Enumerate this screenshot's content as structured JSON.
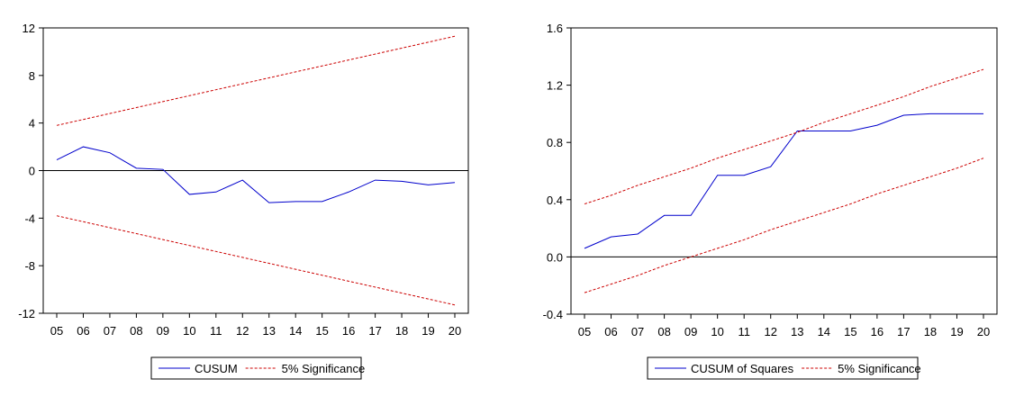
{
  "chart_data": [
    {
      "type": "line",
      "categories": [
        "05",
        "06",
        "07",
        "08",
        "09",
        "10",
        "11",
        "12",
        "13",
        "14",
        "15",
        "16",
        "17",
        "18",
        "19",
        "20"
      ],
      "ylim": [
        -12,
        12
      ],
      "yticks": [
        12,
        8,
        4,
        0,
        -4,
        -8,
        -12
      ],
      "ytick_labels": [
        "12",
        "8",
        "4",
        "0",
        "-4",
        "-8",
        "-12"
      ],
      "series": [
        {
          "name": "CUSUM",
          "color": "#0000cc",
          "style": "solid",
          "values": [
            0.9,
            2.0,
            1.5,
            0.2,
            0.1,
            -2.0,
            -1.8,
            -0.8,
            -2.7,
            -2.6,
            -2.6,
            -1.8,
            -0.8,
            -0.9,
            -1.2,
            -1.0
          ]
        },
        {
          "name": "5% Significance",
          "color": "#cc0000",
          "style": "dashed",
          "values": [
            3.8,
            4.3,
            4.8,
            5.3,
            5.8,
            6.3,
            6.8,
            7.3,
            7.8,
            8.3,
            8.8,
            9.3,
            9.8,
            10.3,
            10.8,
            11.3
          ]
        },
        {
          "name": "5% Significance",
          "color": "#cc0000",
          "style": "dashed",
          "values": [
            -3.8,
            -4.3,
            -4.8,
            -5.3,
            -5.8,
            -6.3,
            -6.8,
            -7.3,
            -7.8,
            -8.3,
            -8.8,
            -9.3,
            -9.8,
            -10.3,
            -10.8,
            -11.3
          ]
        }
      ],
      "zero_line": 0,
      "legend": [
        "CUSUM",
        "5% Significance"
      ],
      "legend_position": "bottom"
    },
    {
      "type": "line",
      "categories": [
        "05",
        "06",
        "07",
        "08",
        "09",
        "10",
        "11",
        "12",
        "13",
        "14",
        "15",
        "16",
        "17",
        "18",
        "19",
        "20"
      ],
      "ylim": [
        -0.4,
        1.6
      ],
      "yticks": [
        1.6,
        1.2,
        0.8,
        0.4,
        0.0,
        -0.4
      ],
      "ytick_labels": [
        "1.6",
        "1.2",
        "0.8",
        "0.4",
        "0.0",
        "-0.4"
      ],
      "series": [
        {
          "name": "CUSUM of Squares",
          "color": "#0000cc",
          "style": "solid",
          "values": [
            0.06,
            0.14,
            0.16,
            0.29,
            0.29,
            0.57,
            0.57,
            0.63,
            0.88,
            0.88,
            0.88,
            0.92,
            0.99,
            1.0,
            1.0,
            1.0
          ]
        },
        {
          "name": "5% Significance",
          "color": "#cc0000",
          "style": "dashed",
          "values": [
            0.37,
            0.43,
            0.5,
            0.56,
            0.62,
            0.69,
            0.75,
            0.81,
            0.87,
            0.94,
            1.0,
            1.06,
            1.12,
            1.19,
            1.25,
            1.31
          ]
        },
        {
          "name": "5% Significance",
          "color": "#cc0000",
          "style": "dashed",
          "values": [
            -0.25,
            -0.19,
            -0.13,
            -0.06,
            0.0,
            0.06,
            0.12,
            0.19,
            0.25,
            0.31,
            0.37,
            0.44,
            0.5,
            0.56,
            0.62,
            0.69
          ]
        }
      ],
      "zero_line": 0,
      "legend": [
        "CUSUM of Squares",
        "5% Significance"
      ],
      "legend_position": "bottom"
    }
  ]
}
